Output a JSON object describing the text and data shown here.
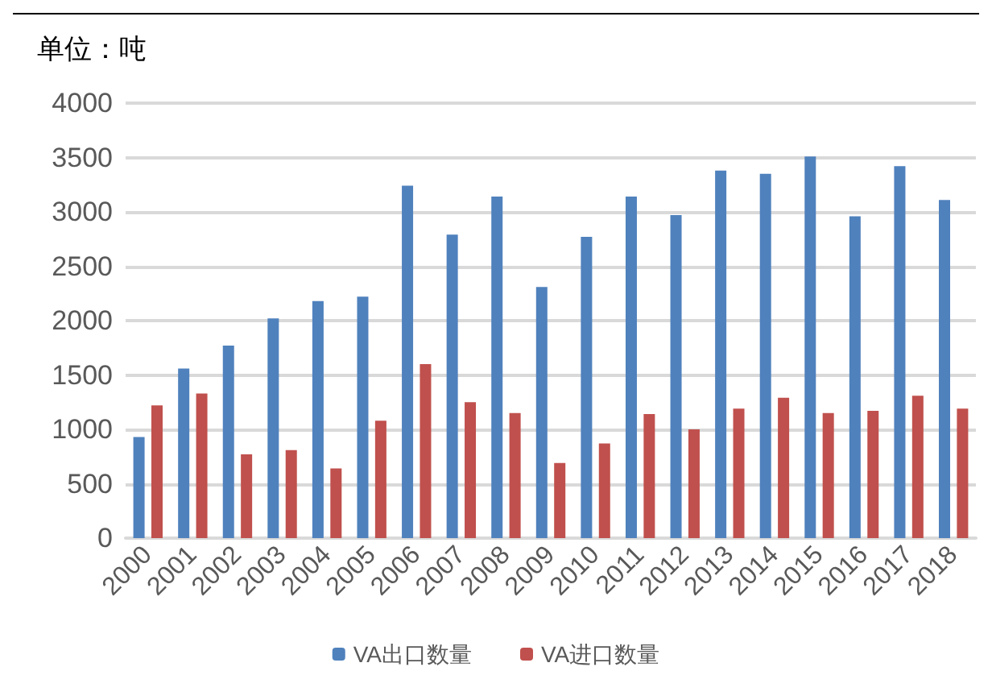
{
  "chart_data": {
    "type": "bar",
    "title": "单位：吨",
    "categories": [
      "2000",
      "2001",
      "2002",
      "2003",
      "2004",
      "2005",
      "2006",
      "2007",
      "2008",
      "2009",
      "2010",
      "2011",
      "2012",
      "2013",
      "2014",
      "2015",
      "2016",
      "2017",
      "2018"
    ],
    "series": [
      {
        "name": "VA出口数量",
        "color": "#4f81bd",
        "values": [
          930,
          1560,
          1770,
          2020,
          2180,
          2220,
          3240,
          2790,
          3140,
          2310,
          2770,
          3140,
          2970,
          3380,
          3350,
          3510,
          2960,
          3420,
          3110
        ]
      },
      {
        "name": "VA进口数量",
        "color": "#c0504d",
        "values": [
          1220,
          1330,
          770,
          810,
          640,
          1080,
          1600,
          1250,
          1150,
          690,
          870,
          1140,
          1000,
          1190,
          1290,
          1150,
          1170,
          1310,
          1190
        ]
      }
    ],
    "ylim": [
      0,
      4000
    ],
    "yticks": [
      0,
      500,
      1000,
      1500,
      2000,
      2500,
      3000,
      3500,
      4000
    ],
    "grid": "y",
    "legend": "bottom"
  }
}
